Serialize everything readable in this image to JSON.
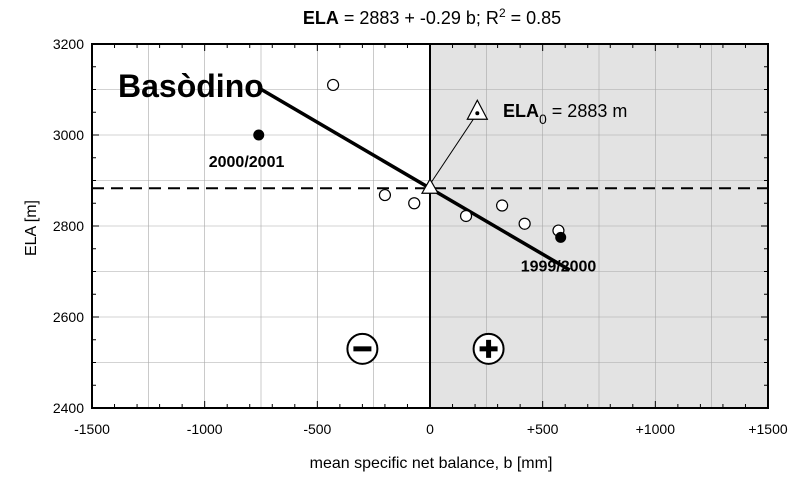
{
  "chart_data": {
    "type": "scatter",
    "title": {
      "bold": "ELA",
      "prefix": " = 2883 + -0.29 b; R",
      "sup": "2",
      "suffix": " = 0.85"
    },
    "xlabel": "mean specific net balance, b [mm]",
    "ylabel": "ELA [m]",
    "xlim": [
      -1500,
      1500
    ],
    "ylim": [
      2400,
      3200
    ],
    "x_ticks": [
      {
        "value": -1500,
        "label": "-1500"
      },
      {
        "value": -1000,
        "label": "-1000"
      },
      {
        "value": -500,
        "label": "-500"
      },
      {
        "value": 0,
        "label": "0"
      },
      {
        "value": 500,
        "label": "+500"
      },
      {
        "value": 1000,
        "label": "+1000"
      },
      {
        "value": 1500,
        "label": "+1500"
      }
    ],
    "y_ticks": [
      {
        "value": 2400,
        "label": "2400"
      },
      {
        "value": 2600,
        "label": "2600"
      },
      {
        "value": 2800,
        "label": "2800"
      },
      {
        "value": 3000,
        "label": "3000"
      },
      {
        "value": 3200,
        "label": "3200"
      }
    ],
    "grid": true,
    "glacier_name": "Basòdino",
    "ela0_label": {
      "main": "ELA",
      "sub": "0",
      "rest": " = 2883 m"
    },
    "ela0": 2883,
    "regression": {
      "intercept": 2883,
      "slope": -0.29,
      "x_range": [
        -750,
        620
      ]
    },
    "open_points": [
      {
        "x": -430,
        "y": 3110
      },
      {
        "x": -200,
        "y": 2868
      },
      {
        "x": -70,
        "y": 2850
      },
      {
        "x": 160,
        "y": 2822
      },
      {
        "x": 320,
        "y": 2845
      },
      {
        "x": 420,
        "y": 2805
      },
      {
        "x": 570,
        "y": 2790
      }
    ],
    "highlighted_points": [
      {
        "x": -760,
        "y": 3000,
        "label": "2000/2001"
      },
      {
        "x": 580,
        "y": 2775,
        "label": "1999/2000"
      }
    ],
    "positive_region_color": "#e3e3e3",
    "negative_symbol": "−",
    "positive_symbol": "+"
  }
}
